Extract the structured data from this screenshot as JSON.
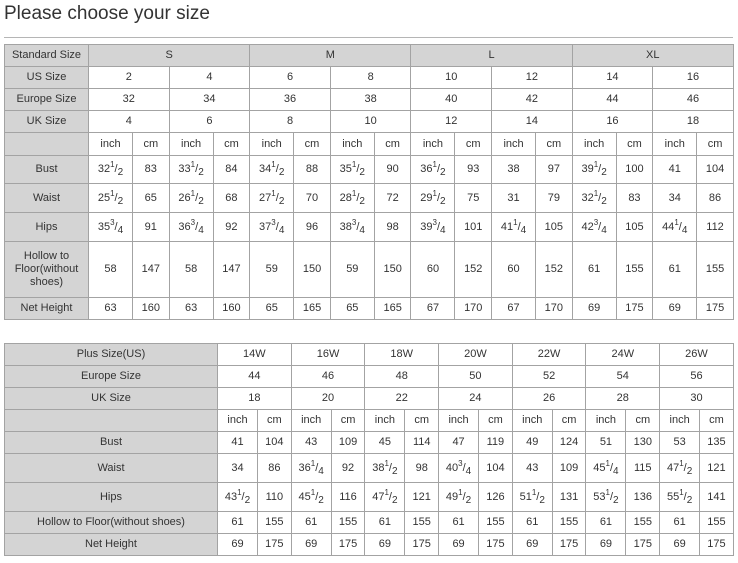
{
  "title": "Please choose your size",
  "colors": {
    "label_bg": "#d4d4d4",
    "border": "#a3a3a3",
    "text": "#333333"
  },
  "standard_table": {
    "rows": [
      {
        "label": "Standard Size",
        "groups": [
          "S",
          "M",
          "L",
          "XL"
        ]
      },
      {
        "label": "US Size",
        "cells": [
          "2",
          "4",
          "6",
          "8",
          "10",
          "12",
          "14",
          "16"
        ]
      },
      {
        "label": "Europe Size",
        "cells": [
          "32",
          "34",
          "36",
          "38",
          "40",
          "42",
          "44",
          "46"
        ]
      },
      {
        "label": "UK Size",
        "cells": [
          "4",
          "6",
          "8",
          "10",
          "12",
          "14",
          "16",
          "18"
        ]
      },
      {
        "label": "",
        "units": [
          "inch",
          "cm",
          "inch",
          "cm",
          "inch",
          "cm",
          "inch",
          "cm",
          "inch",
          "cm",
          "inch",
          "cm",
          "inch",
          "cm",
          "inch",
          "cm"
        ]
      },
      {
        "label": "Bust",
        "values": [
          "32|1/2",
          "83",
          "33|1/2",
          "84",
          "34|1/2",
          "88",
          "35|1/2",
          "90",
          "36|1/2",
          "93",
          "38",
          "97",
          "39|1/2",
          "100",
          "41",
          "104"
        ]
      },
      {
        "label": "Waist",
        "values": [
          "25|1/2",
          "65",
          "26|1/2",
          "68",
          "27|1/2",
          "70",
          "28|1/2",
          "72",
          "29|1/2",
          "75",
          "31",
          "79",
          "32|1/2",
          "83",
          "34",
          "86"
        ]
      },
      {
        "label": "Hips",
        "values": [
          "35|3/4",
          "91",
          "36|3/4",
          "92",
          "37|3/4",
          "96",
          "38|3/4",
          "98",
          "39|3/4",
          "101",
          "41|1/4",
          "105",
          "42|3/4",
          "105",
          "44|1/4",
          "112"
        ]
      },
      {
        "label": "Hollow to Floor(without shoes)",
        "values": [
          "58",
          "147",
          "58",
          "147",
          "59",
          "150",
          "59",
          "150",
          "60",
          "152",
          "60",
          "152",
          "61",
          "155",
          "61",
          "155"
        ]
      },
      {
        "label": "Net Height",
        "values": [
          "63",
          "160",
          "63",
          "160",
          "65",
          "165",
          "65",
          "165",
          "67",
          "170",
          "67",
          "170",
          "69",
          "175",
          "69",
          "175"
        ]
      }
    ]
  },
  "plus_table": {
    "rows": [
      {
        "label": "Plus Size(US)",
        "cells": [
          "14W",
          "16W",
          "18W",
          "20W",
          "22W",
          "24W",
          "26W"
        ]
      },
      {
        "label": "Europe Size",
        "cells": [
          "44",
          "46",
          "48",
          "50",
          "52",
          "54",
          "56"
        ]
      },
      {
        "label": "UK Size",
        "cells": [
          "18",
          "20",
          "22",
          "24",
          "26",
          "28",
          "30"
        ]
      },
      {
        "label": "",
        "units": [
          "inch",
          "cm",
          "inch",
          "cm",
          "inch",
          "cm",
          "inch",
          "cm",
          "inch",
          "cm",
          "inch",
          "cm",
          "inch",
          "cm"
        ]
      },
      {
        "label": "Bust",
        "values": [
          "41",
          "104",
          "43",
          "109",
          "45",
          "114",
          "47",
          "119",
          "49",
          "124",
          "51",
          "130",
          "53",
          "135"
        ]
      },
      {
        "label": "Waist",
        "values": [
          "34",
          "86",
          "36|1/4",
          "92",
          "38|1/2",
          "98",
          "40|3/4",
          "104",
          "43",
          "109",
          "45|1/4",
          "115",
          "47|1/2",
          "121"
        ]
      },
      {
        "label": "Hips",
        "values": [
          "43|1/2",
          "110",
          "45|1/2",
          "116",
          "47|1/2",
          "121",
          "49|1/2",
          "126",
          "51|1/2",
          "131",
          "53|1/2",
          "136",
          "55|1/2",
          "141"
        ]
      },
      {
        "label": "Hollow to Floor(without shoes)",
        "values": [
          "61",
          "155",
          "61",
          "155",
          "61",
          "155",
          "61",
          "155",
          "61",
          "155",
          "61",
          "155",
          "61",
          "155"
        ]
      },
      {
        "label": "Net Height",
        "values": [
          "69",
          "175",
          "69",
          "175",
          "69",
          "175",
          "69",
          "175",
          "69",
          "175",
          "69",
          "175",
          "69",
          "175"
        ]
      }
    ]
  }
}
